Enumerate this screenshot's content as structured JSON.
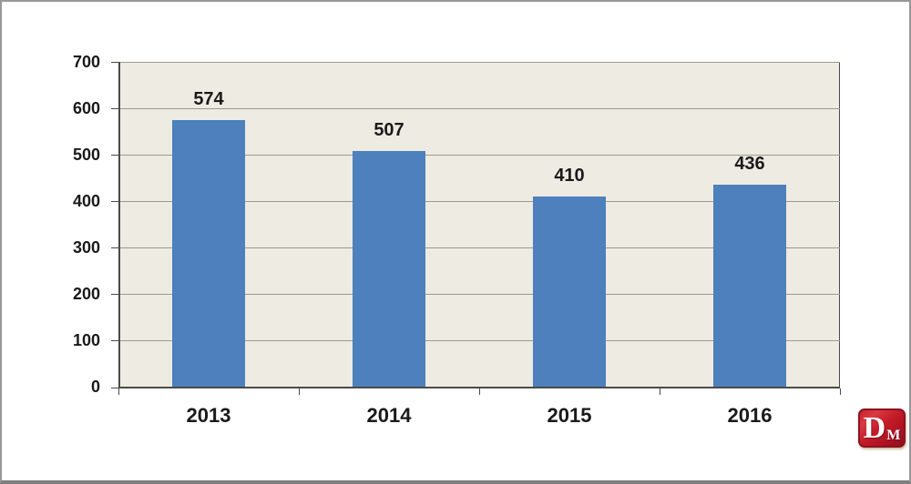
{
  "chart_data": {
    "type": "bar",
    "categories": [
      "2013",
      "2014",
      "2015",
      "2016"
    ],
    "values": [
      574,
      507,
      410,
      436
    ],
    "title": "",
    "xlabel": "",
    "ylabel": "",
    "ylim": [
      0,
      700
    ],
    "yticks": [
      0,
      100,
      200,
      300,
      400,
      500,
      600,
      700
    ],
    "grid": true,
    "legend": "none",
    "data_labels": true,
    "bar_color": "#4d80bc",
    "plot_bg_color": "#eeebe2",
    "grid_color": "#9d998f",
    "axis_color": "#4a4a4a",
    "text_color": "#1a1a1a",
    "frame_border_color": "#8f8f8f"
  },
  "logo": {
    "name": "DM monogram",
    "letter_primary": "D",
    "letter_secondary": "M",
    "bg_color": "#c21b2a",
    "text_color": "#ffffff"
  }
}
